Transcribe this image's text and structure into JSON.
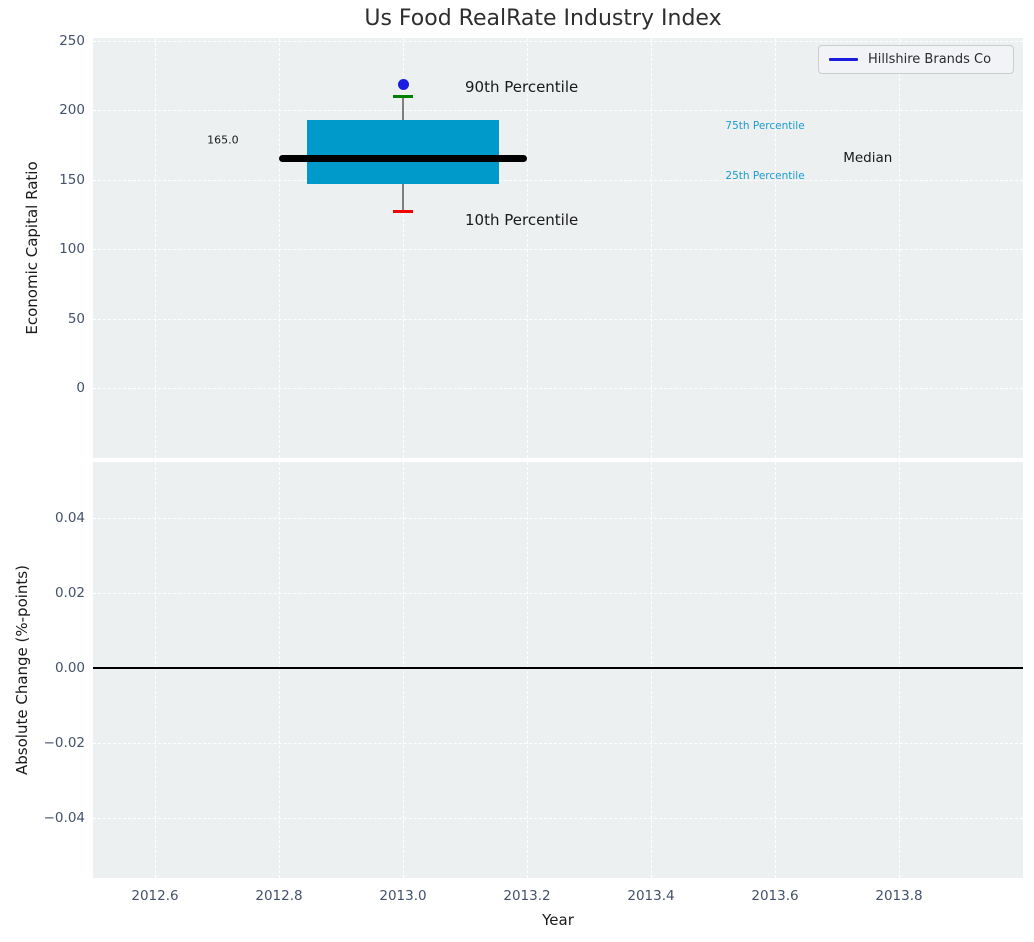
{
  "figure": {
    "title": "Us Food RealRate Industry Index"
  },
  "legend": {
    "label": "Hillshire Brands Co"
  },
  "colors": {
    "background": "#ecf0f1",
    "grid": "#ffffff",
    "box_fill": "#009ACA",
    "median_line": "#000000",
    "whisker": "#7f7f7f",
    "cap_90th": "#008000",
    "cap_10th": "#f30000",
    "company_dot": "#1c1ce0",
    "legend_line": "#1c1ce0",
    "percentile_text": "#1f9bce",
    "dark_text": "#1a1a1a",
    "tick_text": "#44526b",
    "zero_line": "#000000"
  },
  "chart_data": [
    {
      "type": "boxplot",
      "title": "Us Food RealRate Industry Index",
      "xlabel": "Year",
      "ylabel": "Economic Capital Ratio",
      "xlim": [
        2012.5,
        2014.0
      ],
      "ylim": [
        -50,
        252
      ],
      "xtick_values": [
        2012.6,
        2012.8,
        2013.0,
        2013.2,
        2013.4,
        2013.6,
        2013.8
      ],
      "xtick_labels": [
        "2012.6",
        "2012.8",
        "2013.0",
        "2013.2",
        "2013.4",
        "2013.6",
        "2013.8"
      ],
      "ytick_values": [
        250,
        200,
        150,
        100,
        50,
        0
      ],
      "ytick_labels": [
        "250",
        "200",
        "150",
        "100",
        "50",
        "0"
      ],
      "grid": "white-dashed",
      "legend_position": "upper right",
      "box": {
        "x": 2013.0,
        "p10": 127,
        "p25": 147,
        "median": 165.0,
        "p75": 193,
        "p90": 210,
        "box_halfwidth": 0.155,
        "median_halfwidth": 0.2,
        "cap_halfwidth": 0.016,
        "median_label": "165.0"
      },
      "company_point": {
        "name": "Hillshire Brands Co",
        "x": 2013.0,
        "y": 218.5
      },
      "annotations": [
        {
          "text": "90th Percentile",
          "x": 2013.1,
          "y": 216.5,
          "color": "#1a1a1a",
          "size": 15
        },
        {
          "text": "10th Percentile",
          "x": 2013.1,
          "y": 121,
          "color": "#1a1a1a",
          "size": 15
        },
        {
          "text": "75th Percentile",
          "x": 2013.52,
          "y": 188.5,
          "color": "#1f9bce",
          "size": 10.5
        },
        {
          "text": "25th Percentile",
          "x": 2013.52,
          "y": 153,
          "color": "#1f9bce",
          "size": 10.5
        },
        {
          "text": "Median",
          "x": 2013.71,
          "y": 166,
          "color": "#1a1a1a",
          "size": 13.5
        },
        {
          "text": "165.0",
          "x": 2012.684,
          "y": 178.5,
          "color": "#1a1a1a",
          "size": 11
        }
      ]
    },
    {
      "type": "line",
      "xlabel": "Year",
      "ylabel": "Absolute Change (%-points)",
      "xlim": [
        2012.5,
        2014.0
      ],
      "ylim": [
        -0.056,
        0.055
      ],
      "xtick_values": [
        2012.6,
        2012.8,
        2013.0,
        2013.2,
        2013.4,
        2013.6,
        2013.8
      ],
      "xtick_labels": [
        "2012.6",
        "2012.8",
        "2013.0",
        "2013.2",
        "2013.4",
        "2013.6",
        "2013.8"
      ],
      "ytick_values": [
        0.04,
        0.02,
        0.0,
        -0.02,
        -0.04
      ],
      "ytick_labels": [
        "0.04",
        "0.02",
        "0.00",
        "−0.02",
        "−0.04"
      ],
      "zero_line_y": 0.0,
      "series": []
    }
  ]
}
